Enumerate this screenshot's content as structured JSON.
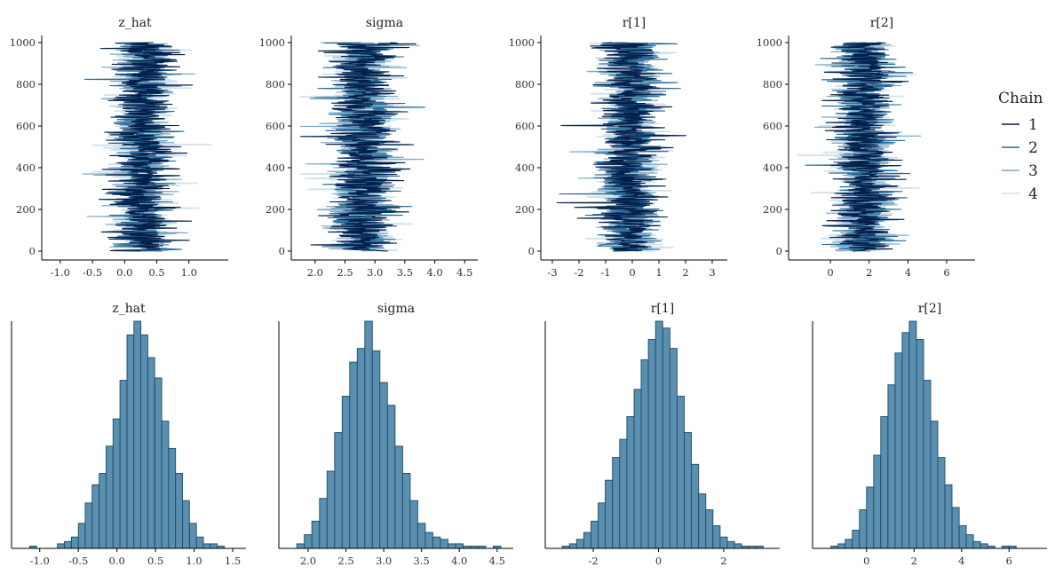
{
  "colors": {
    "chain_1": "#011f4b",
    "chain_2": "#2a6a94",
    "chain_3": "#7da7c5",
    "chain_4": "#d1e1ec",
    "hist_fill": "#5b8fb0",
    "hist_stroke": "#1c4a69",
    "axis": "#000000"
  },
  "legend": {
    "title": "Chain",
    "items": [
      "1",
      "2",
      "3",
      "4"
    ],
    "placement": "right"
  },
  "chart_data": [
    {
      "type": "line",
      "kind": "trace",
      "title": "z_hat",
      "iterations": 1000,
      "chains": 4,
      "ylim": [
        0,
        1000
      ],
      "yticks": [
        "0",
        "200",
        "400",
        "600",
        "800",
        "1000"
      ],
      "xlim": [
        -1.15,
        1.5
      ],
      "xticks": [
        -1.0,
        -0.5,
        0.0,
        0.5,
        1.0
      ],
      "xticklabels": [
        "-1.0",
        "-0.5",
        "0.0",
        "0.5",
        "1.0"
      ],
      "center": 0.28,
      "sd": 0.3,
      "grid": false
    },
    {
      "type": "line",
      "kind": "trace",
      "title": "sigma",
      "iterations": 1000,
      "chains": 4,
      "ylim": [
        0,
        1000
      ],
      "yticks": [
        "0",
        "200",
        "400",
        "600",
        "800",
        "1000"
      ],
      "xlim": [
        1.75,
        4.6
      ],
      "xticks": [
        2.0,
        2.5,
        3.0,
        3.5,
        4.0,
        4.5
      ],
      "xticklabels": [
        "2.0",
        "2.5",
        "3.0",
        "3.5",
        "4.0",
        "4.5"
      ],
      "center": 2.8,
      "sd": 0.35,
      "grid": false
    },
    {
      "type": "line",
      "kind": "trace",
      "title": "r[1]",
      "iterations": 1000,
      "chains": 4,
      "ylim": [
        0,
        1000
      ],
      "yticks": [
        "0",
        "200",
        "400",
        "600",
        "800",
        "1000"
      ],
      "xlim": [
        -3.1,
        3.3
      ],
      "xticks": [
        -3,
        -2,
        -1,
        0,
        1,
        2,
        3
      ],
      "xticklabels": [
        "-3",
        "-2",
        "-1",
        "0",
        "1",
        "2",
        "3"
      ],
      "center": -0.1,
      "sd": 0.75,
      "grid": false
    },
    {
      "type": "line",
      "kind": "trace",
      "title": "r[2]",
      "iterations": 1000,
      "chains": 4,
      "ylim": [
        0,
        1000
      ],
      "yticks": [
        "0",
        "200",
        "400",
        "600",
        "800",
        "1000"
      ],
      "xlim": [
        -1.7,
        7.1
      ],
      "xticks": [
        0,
        2,
        4,
        6
      ],
      "xticklabels": [
        "0",
        "2",
        "4",
        "6"
      ],
      "center": 1.7,
      "sd": 1.0,
      "grid": false
    },
    {
      "type": "bar",
      "kind": "histogram",
      "title": "z_hat",
      "xlim": [
        -1.25,
        1.58
      ],
      "xticks": [
        -1.0,
        -0.5,
        0.0,
        0.5,
        1.0,
        1.5
      ],
      "xticklabels": [
        "-1.0",
        "-0.5",
        "0.0",
        "0.5",
        "1.0",
        "1.5"
      ],
      "bins": [
        [
          -1.13,
          -1.04,
          1
        ],
        [
          -1.04,
          -0.95,
          0
        ],
        [
          -0.95,
          -0.86,
          0
        ],
        [
          -0.86,
          -0.77,
          0
        ],
        [
          -0.77,
          -0.68,
          2
        ],
        [
          -0.68,
          -0.59,
          3
        ],
        [
          -0.59,
          -0.5,
          5
        ],
        [
          -0.5,
          -0.41,
          11
        ],
        [
          -0.41,
          -0.32,
          20
        ],
        [
          -0.32,
          -0.23,
          28
        ],
        [
          -0.23,
          -0.14,
          33
        ],
        [
          -0.14,
          -0.05,
          45
        ],
        [
          -0.05,
          0.04,
          57
        ],
        [
          0.04,
          0.13,
          74
        ],
        [
          0.13,
          0.22,
          94
        ],
        [
          0.22,
          0.31,
          100
        ],
        [
          0.31,
          0.4,
          94
        ],
        [
          0.4,
          0.49,
          84
        ],
        [
          0.49,
          0.58,
          75
        ],
        [
          0.58,
          0.67,
          56
        ],
        [
          0.67,
          0.76,
          44
        ],
        [
          0.76,
          0.85,
          33
        ],
        [
          0.85,
          0.94,
          21
        ],
        [
          0.94,
          1.03,
          11
        ],
        [
          1.03,
          1.12,
          5
        ],
        [
          1.12,
          1.21,
          2
        ],
        [
          1.21,
          1.3,
          2
        ],
        [
          1.3,
          1.39,
          1
        ]
      ],
      "grid": false
    },
    {
      "type": "bar",
      "kind": "histogram",
      "title": "sigma",
      "xlim": [
        1.73,
        4.62
      ],
      "xticks": [
        2.0,
        2.5,
        3.0,
        3.5,
        4.0,
        4.5
      ],
      "xticklabels": [
        "2.0",
        "2.5",
        "3.0",
        "3.5",
        "4.0",
        "4.5"
      ],
      "bins": [
        [
          1.85,
          1.95,
          2
        ],
        [
          1.95,
          2.05,
          6
        ],
        [
          2.05,
          2.15,
          12
        ],
        [
          2.15,
          2.25,
          22
        ],
        [
          2.25,
          2.35,
          34
        ],
        [
          2.35,
          2.45,
          51
        ],
        [
          2.45,
          2.55,
          67
        ],
        [
          2.55,
          2.65,
          82
        ],
        [
          2.65,
          2.75,
          88
        ],
        [
          2.75,
          2.85,
          100
        ],
        [
          2.85,
          2.95,
          87
        ],
        [
          2.95,
          3.05,
          73
        ],
        [
          3.05,
          3.15,
          63
        ],
        [
          3.15,
          3.25,
          45
        ],
        [
          3.25,
          3.35,
          33
        ],
        [
          3.35,
          3.45,
          21
        ],
        [
          3.45,
          3.55,
          11
        ],
        [
          3.55,
          3.65,
          7
        ],
        [
          3.65,
          3.75,
          5
        ],
        [
          3.75,
          3.85,
          4
        ],
        [
          3.85,
          3.95,
          2
        ],
        [
          3.95,
          4.05,
          2
        ],
        [
          4.05,
          4.15,
          1
        ],
        [
          4.15,
          4.25,
          1
        ],
        [
          4.25,
          4.35,
          1
        ],
        [
          4.35,
          4.45,
          0
        ],
        [
          4.45,
          4.55,
          1
        ]
      ],
      "grid": false
    },
    {
      "type": "bar",
      "kind": "histogram",
      "title": "r[1]",
      "xlim": [
        -3.2,
        3.5
      ],
      "xticks": [
        -2,
        0,
        2
      ],
      "xticklabels": [
        "-2",
        "0",
        "2"
      ],
      "bins": [
        [
          -2.95,
          -2.73,
          1
        ],
        [
          -2.73,
          -2.51,
          2
        ],
        [
          -2.51,
          -2.29,
          4
        ],
        [
          -2.29,
          -2.07,
          7
        ],
        [
          -2.07,
          -1.85,
          12
        ],
        [
          -1.85,
          -1.63,
          20
        ],
        [
          -1.63,
          -1.41,
          30
        ],
        [
          -1.41,
          -1.19,
          40
        ],
        [
          -1.19,
          -0.97,
          48
        ],
        [
          -0.97,
          -0.75,
          58
        ],
        [
          -0.75,
          -0.53,
          70
        ],
        [
          -0.53,
          -0.31,
          83
        ],
        [
          -0.31,
          -0.09,
          92
        ],
        [
          -0.09,
          0.13,
          100
        ],
        [
          0.13,
          0.35,
          97
        ],
        [
          0.35,
          0.57,
          88
        ],
        [
          0.57,
          0.79,
          67
        ],
        [
          0.79,
          1.01,
          51
        ],
        [
          1.01,
          1.23,
          37
        ],
        [
          1.23,
          1.45,
          24
        ],
        [
          1.45,
          1.67,
          17
        ],
        [
          1.67,
          1.89,
          10
        ],
        [
          1.89,
          2.11,
          5
        ],
        [
          2.11,
          2.33,
          3
        ],
        [
          2.33,
          2.55,
          2
        ],
        [
          2.55,
          2.77,
          1
        ],
        [
          2.77,
          2.99,
          1
        ],
        [
          2.99,
          3.21,
          1
        ]
      ],
      "grid": false
    },
    {
      "type": "bar",
      "kind": "histogram",
      "title": "r[2]",
      "xlim": [
        -1.9,
        7.3
      ],
      "xticks": [
        0,
        2,
        4,
        6
      ],
      "xticklabels": [
        "0",
        "2",
        "4",
        "6"
      ],
      "bins": [
        [
          -1.5,
          -1.2,
          1
        ],
        [
          -1.2,
          -0.9,
          2
        ],
        [
          -0.9,
          -0.6,
          4
        ],
        [
          -0.6,
          -0.3,
          8
        ],
        [
          -0.3,
          0.0,
          17
        ],
        [
          0.0,
          0.3,
          27
        ],
        [
          0.3,
          0.6,
          41
        ],
        [
          0.6,
          0.9,
          58
        ],
        [
          0.9,
          1.2,
          72
        ],
        [
          1.2,
          1.5,
          86
        ],
        [
          1.5,
          1.8,
          95
        ],
        [
          1.8,
          2.1,
          100
        ],
        [
          2.1,
          2.4,
          92
        ],
        [
          2.4,
          2.7,
          74
        ],
        [
          2.7,
          3.0,
          56
        ],
        [
          3.0,
          3.3,
          40
        ],
        [
          3.3,
          3.6,
          28
        ],
        [
          3.6,
          3.9,
          18
        ],
        [
          3.9,
          4.2,
          10
        ],
        [
          4.2,
          4.5,
          6
        ],
        [
          4.5,
          4.8,
          3
        ],
        [
          4.8,
          5.1,
          2
        ],
        [
          5.1,
          5.4,
          1
        ],
        [
          5.4,
          5.7,
          0
        ],
        [
          5.7,
          6.0,
          1
        ],
        [
          6.0,
          6.3,
          1
        ]
      ],
      "grid": false
    }
  ]
}
